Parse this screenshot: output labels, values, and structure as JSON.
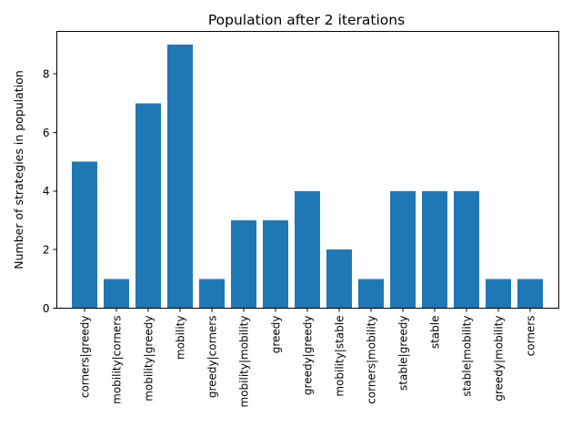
{
  "chart_data": {
    "type": "bar",
    "title": "Population after 2 iterations",
    "xlabel": "",
    "ylabel": "Number of strategies in population",
    "categories": [
      "corners|greedy",
      "mobility|corners",
      "mobility|greedy",
      "mobility",
      "greedy|corners",
      "mobility|mobility",
      "greedy",
      "greedy|greedy",
      "mobility|stable",
      "corners|mobility",
      "stable|greedy",
      "stable",
      "stable|mobility",
      "greedy|mobility",
      "corners"
    ],
    "values": [
      5,
      1,
      7,
      9,
      1,
      3,
      3,
      4,
      2,
      1,
      4,
      4,
      4,
      1,
      1
    ],
    "ylim": [
      0,
      9.45
    ],
    "yticks": [
      0,
      2,
      4,
      6,
      8
    ],
    "bar_color": "#1f77b4",
    "grid": false,
    "legend": "none"
  }
}
